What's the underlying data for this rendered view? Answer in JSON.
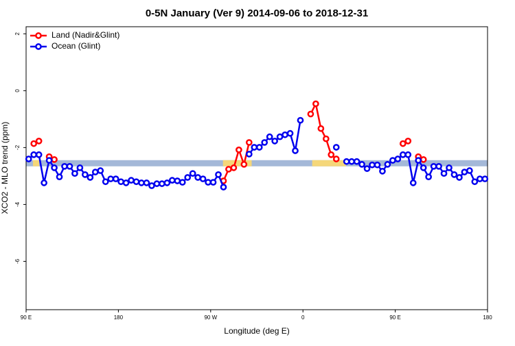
{
  "chart_data": {
    "type": "line",
    "title": "0-5N January (Ver 9)   2014-09-06 to 2018-12-31",
    "xlabel": "Longitude (deg E)",
    "ylabel": "XCO2 - MLO trend (ppm)",
    "xlim": [
      90,
      540
    ],
    "ylim": [
      -7.7,
      2.25
    ],
    "xticks": [
      {
        "value": 90,
        "label": "90 E"
      },
      180,
      {
        "value": 270,
        "label": "90 W"
      },
      {
        "value": 360,
        "label": "0"
      },
      {
        "value": 450,
        "label": "90 E"
      },
      {
        "value": 540,
        "label": "180"
      }
    ],
    "yticks": [
      2,
      0,
      -2,
      -4,
      -6
    ],
    "legend": "top-left",
    "mask_band": {
      "value": -2.55,
      "ocean_color": "#a4b8d8",
      "land_color": "#f5d77a",
      "land_ranges": [
        [
          96.7,
          102.7
        ],
        [
          282,
          310
        ],
        [
          369,
          402
        ]
      ]
    },
    "x": [
      92.5,
      97.5,
      102.5,
      107.5,
      112.5,
      117.5,
      122.5,
      127.5,
      132.5,
      137.5,
      142.5,
      147.5,
      152.5,
      157.5,
      162.5,
      167.5,
      172.5,
      177.5,
      182.5,
      187.5,
      192.5,
      197.5,
      202.5,
      207.5,
      212.5,
      217.5,
      222.5,
      227.5,
      232.5,
      237.5,
      242.5,
      247.5,
      252.5,
      257.5,
      262.5,
      267.5,
      272.5,
      277.5,
      282.5,
      287.5,
      292.5,
      297.5,
      302.5,
      307.5,
      312.5,
      317.5,
      322.5,
      327.5,
      332.5,
      337.5,
      342.5,
      347.5,
      352.5,
      357.5,
      362.5,
      367.5,
      372.5,
      377.5,
      382.5,
      387.5,
      392.5,
      397.5,
      402.5,
      407.5,
      412.5,
      417.5,
      422.5,
      427.5,
      432.5,
      437.5,
      442.5,
      447.5,
      452.5,
      457.5,
      462.5,
      467.5,
      472.5,
      477.5,
      482.5,
      487.5,
      492.5,
      497.5,
      502.5,
      507.5,
      512.5,
      517.5,
      522.5,
      527.5,
      532.5,
      537.5
    ],
    "series": [
      {
        "name": "Land (Nadir&Glint)",
        "color": "#ff0000",
        "values": [
          null,
          -1.86,
          -1.77,
          null,
          -2.32,
          -2.42,
          null,
          null,
          null,
          null,
          null,
          null,
          null,
          null,
          null,
          null,
          null,
          null,
          null,
          null,
          null,
          null,
          null,
          null,
          null,
          null,
          null,
          null,
          null,
          null,
          null,
          null,
          null,
          null,
          null,
          null,
          null,
          null,
          -3.17,
          -2.76,
          -2.71,
          -2.08,
          -2.59,
          -1.82,
          null,
          null,
          null,
          null,
          null,
          null,
          null,
          null,
          null,
          null,
          null,
          -0.82,
          -0.46,
          -1.33,
          -1.69,
          -2.25,
          -2.4,
          null,
          null,
          null,
          null,
          null,
          null,
          null,
          null,
          null,
          null,
          null,
          null,
          -1.86,
          -1.77,
          null,
          -2.32,
          -2.42,
          null,
          null,
          null,
          null,
          null,
          null,
          null,
          null,
          null,
          null,
          null,
          null
        ]
      },
      {
        "name": "Ocean (Glint)",
        "color": "#0000ee",
        "values": [
          -2.4,
          -2.25,
          -2.25,
          -3.24,
          -2.45,
          -2.71,
          -3.03,
          -2.66,
          -2.66,
          -2.91,
          -2.71,
          -2.95,
          -3.05,
          -2.86,
          -2.81,
          -3.2,
          -3.1,
          -3.1,
          -3.2,
          -3.24,
          -3.15,
          -3.2,
          -3.24,
          -3.24,
          -3.34,
          -3.27,
          -3.27,
          -3.24,
          -3.15,
          -3.17,
          -3.22,
          -3.05,
          -2.91,
          -3.05,
          -3.1,
          -3.22,
          -3.22,
          -2.95,
          -3.39,
          null,
          null,
          null,
          null,
          -2.23,
          -1.99,
          -1.99,
          -1.82,
          -1.62,
          -1.77,
          -1.62,
          -1.55,
          -1.5,
          -2.11,
          -1.04,
          null,
          null,
          null,
          null,
          null,
          null,
          -1.99,
          null,
          -2.49,
          -2.49,
          -2.49,
          -2.59,
          -2.74,
          -2.61,
          -2.61,
          -2.83,
          -2.59,
          -2.45,
          -2.4,
          -2.25,
          -2.25,
          -3.24,
          -2.45,
          -2.71,
          -3.03,
          -2.66,
          -2.66,
          -2.91,
          -2.71,
          -2.95,
          -3.05,
          -2.86,
          -2.81,
          -3.2,
          -3.1,
          -3.1
        ]
      }
    ]
  }
}
